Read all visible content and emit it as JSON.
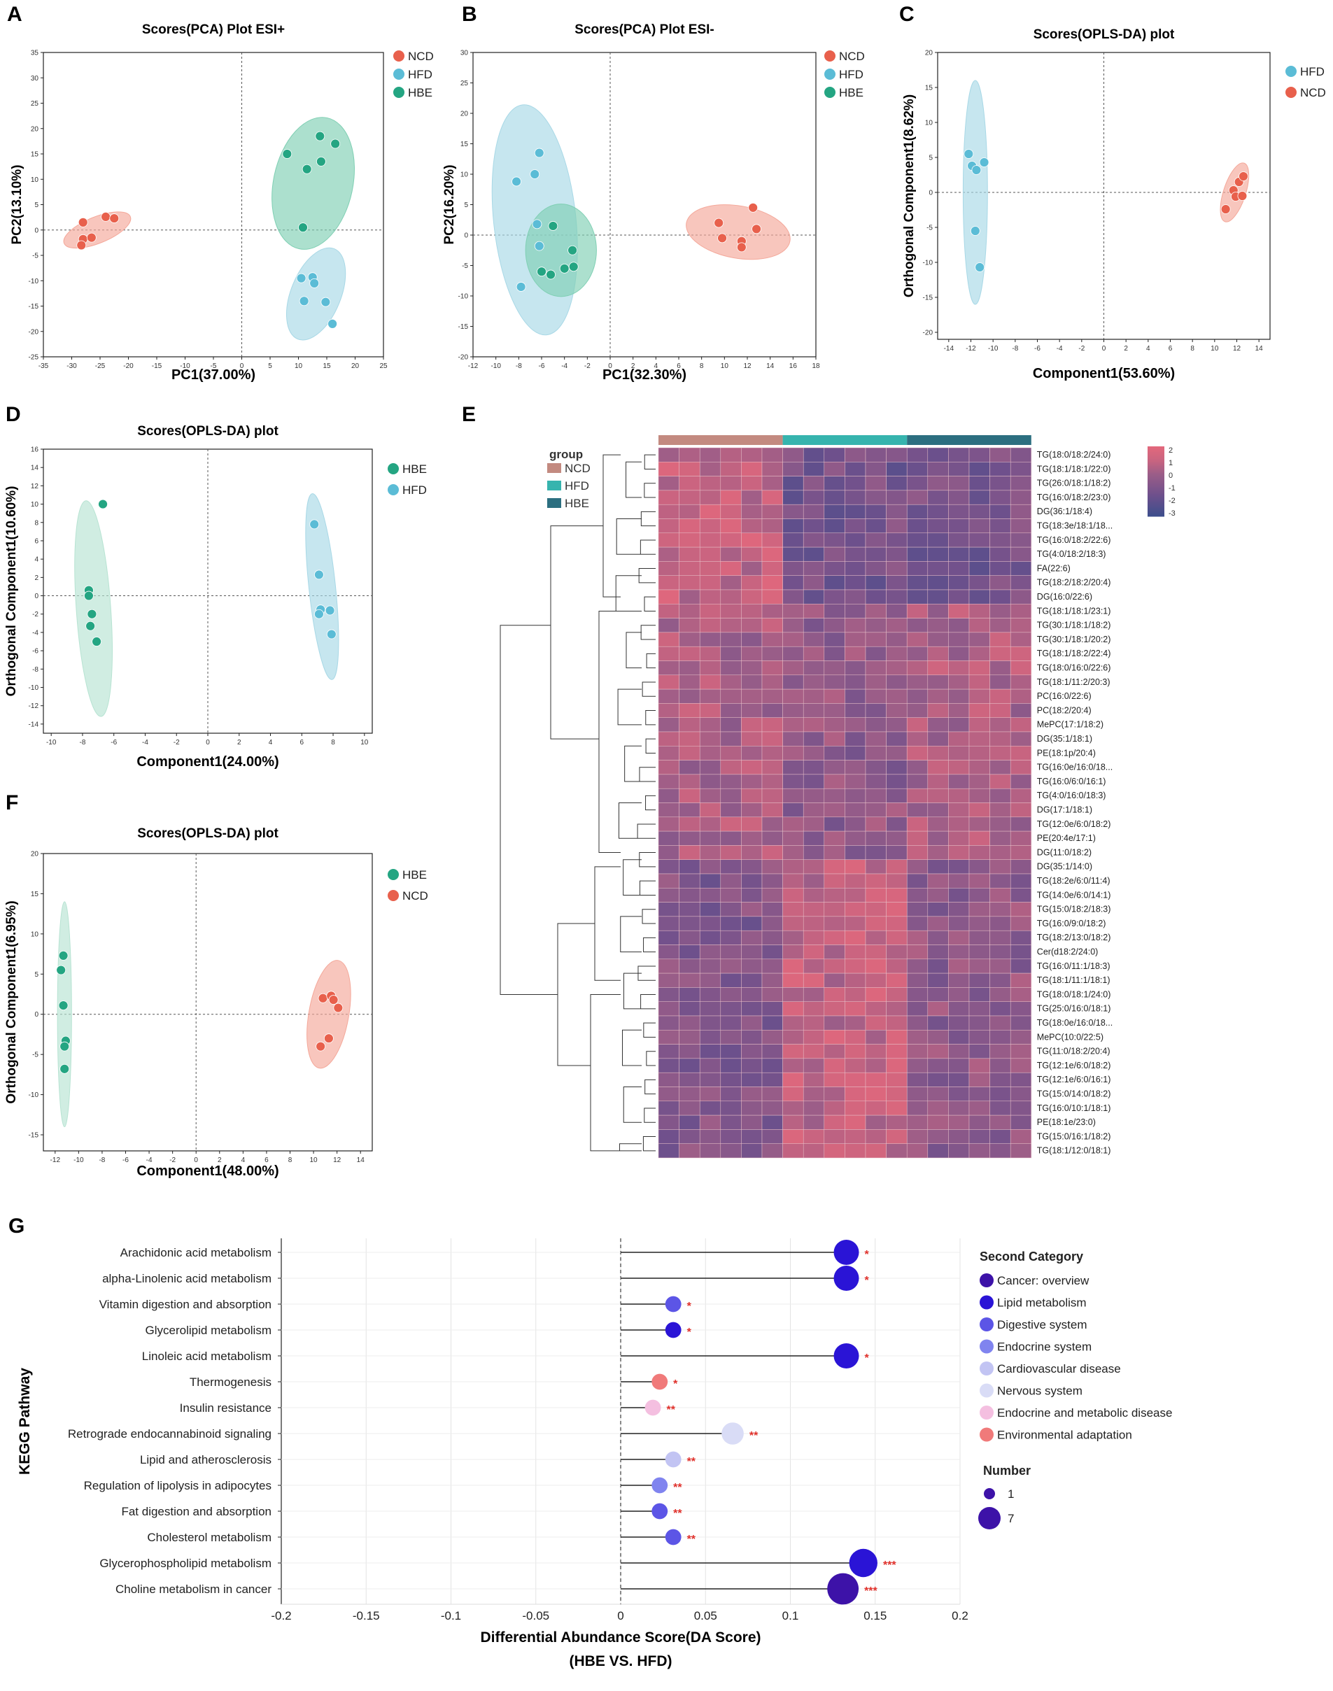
{
  "colors": {
    "NCD": "#e8604c",
    "HFD": "#5bbcd6",
    "HBE": "#24a582",
    "NCD_ellipse": "#f4a89a",
    "HFD_ellipse": "#a8d8e6",
    "HBE_ellipse": "#7fcfb3",
    "HBE_ellipse_light": "#b7e3d2",
    "heat_NCD_bar": "#c38a80",
    "heat_HFD_bar": "#36b4ae",
    "heat_HBE_bar": "#2c6f80",
    "heat_low": "#3e4e8c",
    "heat_mid": "#9a5d88",
    "heat_high": "#e0687c",
    "sig": "#e0302a"
  },
  "chart_data": [
    {
      "id": "A",
      "type": "scatter",
      "title": "Scores(PCA) Plot ESI+",
      "xlabel": "PC1(37.00%)",
      "ylabel": "PC2(13.10%)",
      "xlim": [
        -35,
        25
      ],
      "ylim": [
        -25,
        35
      ],
      "xticks": [
        -35,
        -30,
        -25,
        -20,
        -15,
        -10,
        -5,
        0,
        5,
        10,
        15,
        20,
        25
      ],
      "yticks": [
        -25,
        -20,
        -15,
        -10,
        -5,
        0,
        5,
        10,
        15,
        20,
        25,
        30,
        35
      ],
      "legend": [
        "NCD",
        "HFD",
        "HBE"
      ],
      "groups": [
        {
          "name": "NCD",
          "points": [
            [
              -28,
              1.5
            ],
            [
              -28,
              -1.8
            ],
            [
              -26.5,
              -1.5
            ],
            [
              -24,
              2.6
            ],
            [
              -22.5,
              2.3
            ],
            [
              -28.3,
              -3
            ]
          ],
          "ellipse": {
            "cx": -25.5,
            "cy": 0,
            "rx": 6.3,
            "ry": 2.6,
            "angle": -22
          }
        },
        {
          "name": "HFD",
          "points": [
            [
              10.5,
              -9.5
            ],
            [
              12.5,
              -9.3
            ],
            [
              12.8,
              -10.5
            ],
            [
              11,
              -14
            ],
            [
              14.8,
              -14.2
            ],
            [
              16,
              -18.5
            ]
          ],
          "ellipse": {
            "cx": 13.1,
            "cy": -12.6,
            "rx": 4.4,
            "ry": 9.6,
            "angle": 22
          }
        },
        {
          "name": "HBE",
          "points": [
            [
              8,
              15
            ],
            [
              11.5,
              12
            ],
            [
              13.8,
              18.5
            ],
            [
              14,
              13.5
            ],
            [
              16.5,
              17
            ],
            [
              10.8,
              0.5
            ]
          ],
          "ellipse": {
            "cx": 12.6,
            "cy": 9.2,
            "rx": 7.0,
            "ry": 13.2,
            "angle": 12
          }
        }
      ]
    },
    {
      "id": "B",
      "type": "scatter",
      "title": "Scores(PCA) Plot ESI-",
      "xlabel": "PC1(32.30%)",
      "ylabel": "PC2(16.20%)",
      "xlim": [
        -12,
        18
      ],
      "ylim": [
        -20,
        30
      ],
      "xticks": [
        -12,
        -10,
        -8,
        -6,
        -4,
        -2,
        0,
        2,
        4,
        6,
        8,
        10,
        12,
        14,
        16,
        18
      ],
      "yticks": [
        -20,
        -15,
        -10,
        -5,
        0,
        5,
        10,
        15,
        20,
        25,
        30
      ],
      "legend": [
        "NCD",
        "HFD",
        "HBE"
      ],
      "groups": [
        {
          "name": "NCD",
          "points": [
            [
              9.5,
              2
            ],
            [
              12.5,
              4.5
            ],
            [
              12.8,
              1
            ],
            [
              9.8,
              -0.5
            ],
            [
              11.5,
              -1
            ],
            [
              11.5,
              -2
            ]
          ],
          "ellipse": {
            "cx": 11.2,
            "cy": 0.5,
            "rx": 4.6,
            "ry": 4.3,
            "angle": 10
          }
        },
        {
          "name": "HFD",
          "points": [
            [
              -8.2,
              8.8
            ],
            [
              -6.6,
              10
            ],
            [
              -6.2,
              13.5
            ],
            [
              -6.4,
              1.8
            ],
            [
              -6.2,
              -1.8
            ],
            [
              -7.8,
              -8.5
            ]
          ],
          "ellipse": {
            "cx": -6.6,
            "cy": 2.5,
            "rx": 3.6,
            "ry": 19,
            "angle": -6
          }
        },
        {
          "name": "HBE",
          "points": [
            [
              -5,
              1.5
            ],
            [
              -6,
              -6
            ],
            [
              -5.2,
              -6.5
            ],
            [
              -4,
              -5.5
            ],
            [
              -3.2,
              -5.2
            ],
            [
              -3.3,
              -2.5
            ]
          ],
          "ellipse": {
            "cx": -4.3,
            "cy": -2.5,
            "rx": 3.1,
            "ry": 7.6,
            "angle": 0
          }
        }
      ]
    },
    {
      "id": "C",
      "type": "scatter",
      "title": "Scores(OPLS-DA) plot",
      "xlabel": "Component1(53.60%)",
      "ylabel": "Orthogonal Component1(8.62%)",
      "xlim": [
        -15,
        15
      ],
      "ylim": [
        -21,
        20
      ],
      "xticks": [
        -14,
        -12,
        -10,
        -8,
        -6,
        -4,
        -2,
        0,
        2,
        4,
        6,
        8,
        10,
        12,
        14
      ],
      "yticks": [
        -20,
        -15,
        -10,
        -5,
        0,
        5,
        10,
        15,
        20
      ],
      "legend": [
        "HFD",
        "NCD"
      ],
      "groups": [
        {
          "name": "HFD",
          "points": [
            [
              -12.2,
              5.5
            ],
            [
              -11.9,
              3.8
            ],
            [
              -11.5,
              3.2
            ],
            [
              -10.8,
              4.3
            ],
            [
              -11.6,
              -5.5
            ],
            [
              -11.2,
              -10.7
            ]
          ],
          "ellipse": {
            "cx": -11.6,
            "cy": 0,
            "rx": 1.1,
            "ry": 16,
            "angle": 0
          }
        },
        {
          "name": "NCD",
          "points": [
            [
              11,
              -2.4
            ],
            [
              11.7,
              0.3
            ],
            [
              11.9,
              -0.6
            ],
            [
              12.2,
              1.5
            ],
            [
              12.6,
              2.3
            ],
            [
              12.5,
              -0.5
            ]
          ],
          "ellipse": {
            "cx": 11.8,
            "cy": 0,
            "rx": 1.0,
            "ry": 4.4,
            "angle": 18
          }
        }
      ]
    },
    {
      "id": "D",
      "type": "scatter",
      "title": "Scores(OPLS-DA) plot",
      "xlabel": "Component1(24.00%)",
      "ylabel": "Orthogonal Component1(10.60%)",
      "xlim": [
        -10.5,
        10.5
      ],
      "ylim": [
        -15,
        16
      ],
      "xticks": [
        -10,
        -8,
        -6,
        -4,
        -2,
        0,
        2,
        4,
        6,
        8,
        10
      ],
      "yticks": [
        -14,
        -12,
        -10,
        -8,
        -6,
        -4,
        -2,
        0,
        2,
        4,
        6,
        8,
        10,
        12,
        14,
        16
      ],
      "legend": [
        "HBE",
        "HFD"
      ],
      "groups": [
        {
          "name": "HBE",
          "points": [
            [
              -6.7,
              10
            ],
            [
              -7.6,
              0.6
            ],
            [
              -7.6,
              0
            ],
            [
              -7.4,
              -2
            ],
            [
              -7.5,
              -3.3
            ],
            [
              -7.1,
              -5
            ]
          ],
          "ellipse": {
            "cx": -7.3,
            "cy": -1.4,
            "rx": 1.1,
            "ry": 11.8,
            "angle": -4
          }
        },
        {
          "name": "HFD",
          "points": [
            [
              6.8,
              7.8
            ],
            [
              7.1,
              2.3
            ],
            [
              7.2,
              -1.5
            ],
            [
              7.1,
              -2
            ],
            [
              7.8,
              -1.6
            ],
            [
              7.9,
              -4.2
            ]
          ],
          "ellipse": {
            "cx": 7.3,
            "cy": 1.0,
            "rx": 0.85,
            "ry": 10.2,
            "angle": -6
          }
        }
      ]
    },
    {
      "id": "F",
      "type": "scatter",
      "title": "Scores(OPLS-DA) plot",
      "xlabel": "Component1(48.00%)",
      "ylabel": "Orthogonal Component1(6.95%)",
      "xlim": [
        -13,
        15
      ],
      "ylim": [
        -17,
        20
      ],
      "xticks": [
        -12,
        -10,
        -8,
        -6,
        -4,
        -2,
        0,
        2,
        4,
        6,
        8,
        10,
        12,
        14
      ],
      "yticks": [
        -15,
        -10,
        -5,
        0,
        5,
        10,
        15,
        20
      ],
      "legend": [
        "HBE",
        "NCD"
      ],
      "groups": [
        {
          "name": "HBE",
          "points": [
            [
              -11.3,
              7.3
            ],
            [
              -11.5,
              5.5
            ],
            [
              -11.3,
              1.1
            ],
            [
              -11.1,
              -3.3
            ],
            [
              -11.2,
              -4
            ],
            [
              -11.2,
              -6.8
            ]
          ],
          "ellipse": {
            "cx": -11.2,
            "cy": 0,
            "rx": 0.6,
            "ry": 14,
            "angle": 0
          }
        },
        {
          "name": "NCD",
          "points": [
            [
              10.8,
              2
            ],
            [
              11.5,
              2.3
            ],
            [
              11.7,
              1.8
            ],
            [
              12.1,
              0.8
            ],
            [
              11.3,
              -3
            ],
            [
              10.6,
              -4
            ]
          ],
          "ellipse": {
            "cx": 11.3,
            "cy": 0,
            "rx": 1.7,
            "ry": 6.8,
            "angle": 10
          }
        }
      ]
    },
    {
      "id": "E",
      "type": "heatmap",
      "legend_title": "group",
      "groups": [
        {
          "name": "NCD",
          "columns": 6
        },
        {
          "name": "HFD",
          "columns": 6
        },
        {
          "name": "HBE",
          "columns": 6
        }
      ],
      "scale": {
        "min": -3,
        "max": 2,
        "ticks": [
          "2",
          "1",
          "0",
          "-1",
          "-2",
          "-3"
        ]
      },
      "rows": [
        "TG(18:0/18:2/24:0)",
        "TG(18:1/18:1/22:0)",
        "TG(26:0/18:1/18:2)",
        "TG(16:0/18:2/23:0)",
        "DG(36:1/18:4)",
        "TG(18:3e/18:1/18...",
        "TG(16:0/18:2/22:6)",
        "TG(4:0/18:2/18:3)",
        "FA(22:6)",
        "TG(18:2/18:2/20:4)",
        "DG(16:0/22:6)",
        "TG(18:1/18:1/23:1)",
        "TG(30:1/18:1/18:2)",
        "TG(30:1/18:1/20:2)",
        "TG(18:1/18:2/22:4)",
        "TG(18:0/16:0/22:6)",
        "TG(18:1/11:2/20:3)",
        "PC(16:0/22:6)",
        "PC(18:2/20:4)",
        "MePC(17:1/18:2)",
        "DG(35:1/18:1)",
        "PE(18:1p/20:4)",
        "TG(16:0e/16:0/18...",
        "TG(16:0/6:0/16:1)",
        "TG(4:0/16:0/18:3)",
        "DG(17:1/18:1)",
        "TG(12:0e/6:0/18:2)",
        "PE(20:4e/17:1)",
        "DG(11:0/18:2)",
        "DG(35:1/14:0)",
        "TG(18:2e/6:0/11:4)",
        "TG(14:0e/6:0/14:1)",
        "TG(15:0/18:2/18:3)",
        "TG(16:0/9:0/18:2)",
        "TG(18:2/13:0/18:2)",
        "Cer(d18:2/24:0)",
        "TG(16:0/11:1/18:3)",
        "TG(18:1/11:1/18:1)",
        "TG(18:0/18:1/24:0)",
        "TG(25:0/16:0/18:1)",
        "TG(18:0e/16:0/18...",
        "MePC(10:0/22:5)",
        "TG(11:0/18:2/20:4)",
        "TG(12:1e/6:0/18:2)",
        "TG(12:1e/6:0/16:1)",
        "TG(15:0/14:0/18:2)",
        "TG(16:0/10:1/18:1)",
        "PE(18:1e/23:0)",
        "TG(15:0/16:1/18:2)",
        "TG(18:1/12:0/18:1)"
      ]
    },
    {
      "id": "G",
      "type": "lollipop",
      "xlabel": "Differential Abundance Score(DA Score)",
      "xlabel2": "(HBE VS. HFD)",
      "ylabel": "KEGG Pathway",
      "xlim": [
        -0.2,
        0.2
      ],
      "xticks": [
        "-0.2",
        "-0.15",
        "-0.1",
        "-0.05",
        "0",
        "0.05",
        "0.1",
        "0.15",
        "0.2"
      ],
      "category_title": "Second Category",
      "size_title": "Number",
      "size_legend": [
        "1",
        "7"
      ],
      "categories": [
        {
          "name": "Cancer: overview",
          "color": "#3d12a8"
        },
        {
          "name": "Lipid metabolism",
          "color": "#2a14d6"
        },
        {
          "name": "Digestive system",
          "color": "#5c55e6"
        },
        {
          "name": "Endocrine system",
          "color": "#8084ef"
        },
        {
          "name": "Cardiovascular disease",
          "color": "#c2c4f3"
        },
        {
          "name": "Nervous system",
          "color": "#d9dcf6"
        },
        {
          "name": "Endocrine and metabolic disease",
          "color": "#f4bfe0"
        },
        {
          "name": "Environmental adaptation",
          "color": "#f07a7a"
        }
      ],
      "pathways": [
        {
          "name": "Arachidonic acid metabolism",
          "score": 0.133,
          "size": 5,
          "category": "Lipid metabolism",
          "sig": "*"
        },
        {
          "name": "alpha-Linolenic acid metabolism",
          "score": 0.133,
          "size": 5,
          "category": "Lipid metabolism",
          "sig": "*"
        },
        {
          "name": "Vitamin digestion and absorption",
          "score": 0.031,
          "size": 2,
          "category": "Digestive system",
          "sig": "*"
        },
        {
          "name": "Glycerolipid metabolism",
          "score": 0.031,
          "size": 2,
          "category": "Lipid metabolism",
          "sig": "*"
        },
        {
          "name": "Linoleic acid metabolism",
          "score": 0.133,
          "size": 5,
          "category": "Lipid metabolism",
          "sig": "*"
        },
        {
          "name": "Thermogenesis",
          "score": 0.023,
          "size": 2,
          "category": "Environmental adaptation",
          "sig": "*"
        },
        {
          "name": "Insulin resistance",
          "score": 0.019,
          "size": 2,
          "category": "Endocrine and metabolic disease",
          "sig": "**"
        },
        {
          "name": "Retrograde endocannabinoid signaling",
          "score": 0.066,
          "size": 4,
          "category": "Nervous system",
          "sig": "**"
        },
        {
          "name": "Lipid and atherosclerosis",
          "score": 0.031,
          "size": 2,
          "category": "Cardiovascular disease",
          "sig": "**"
        },
        {
          "name": "Regulation of lipolysis in adipocytes",
          "score": 0.023,
          "size": 2,
          "category": "Endocrine system",
          "sig": "**"
        },
        {
          "name": "Fat digestion and absorption",
          "score": 0.023,
          "size": 2,
          "category": "Digestive system",
          "sig": "**"
        },
        {
          "name": "Cholesterol metabolism",
          "score": 0.031,
          "size": 2,
          "category": "Digestive system",
          "sig": "**"
        },
        {
          "name": "Glycerophospholipid metabolism",
          "score": 0.143,
          "size": 6,
          "category": "Lipid metabolism",
          "sig": "***"
        },
        {
          "name": "Choline metabolism in cancer",
          "score": 0.131,
          "size": 7,
          "category": "Cancer: overview",
          "sig": "***"
        }
      ]
    }
  ]
}
